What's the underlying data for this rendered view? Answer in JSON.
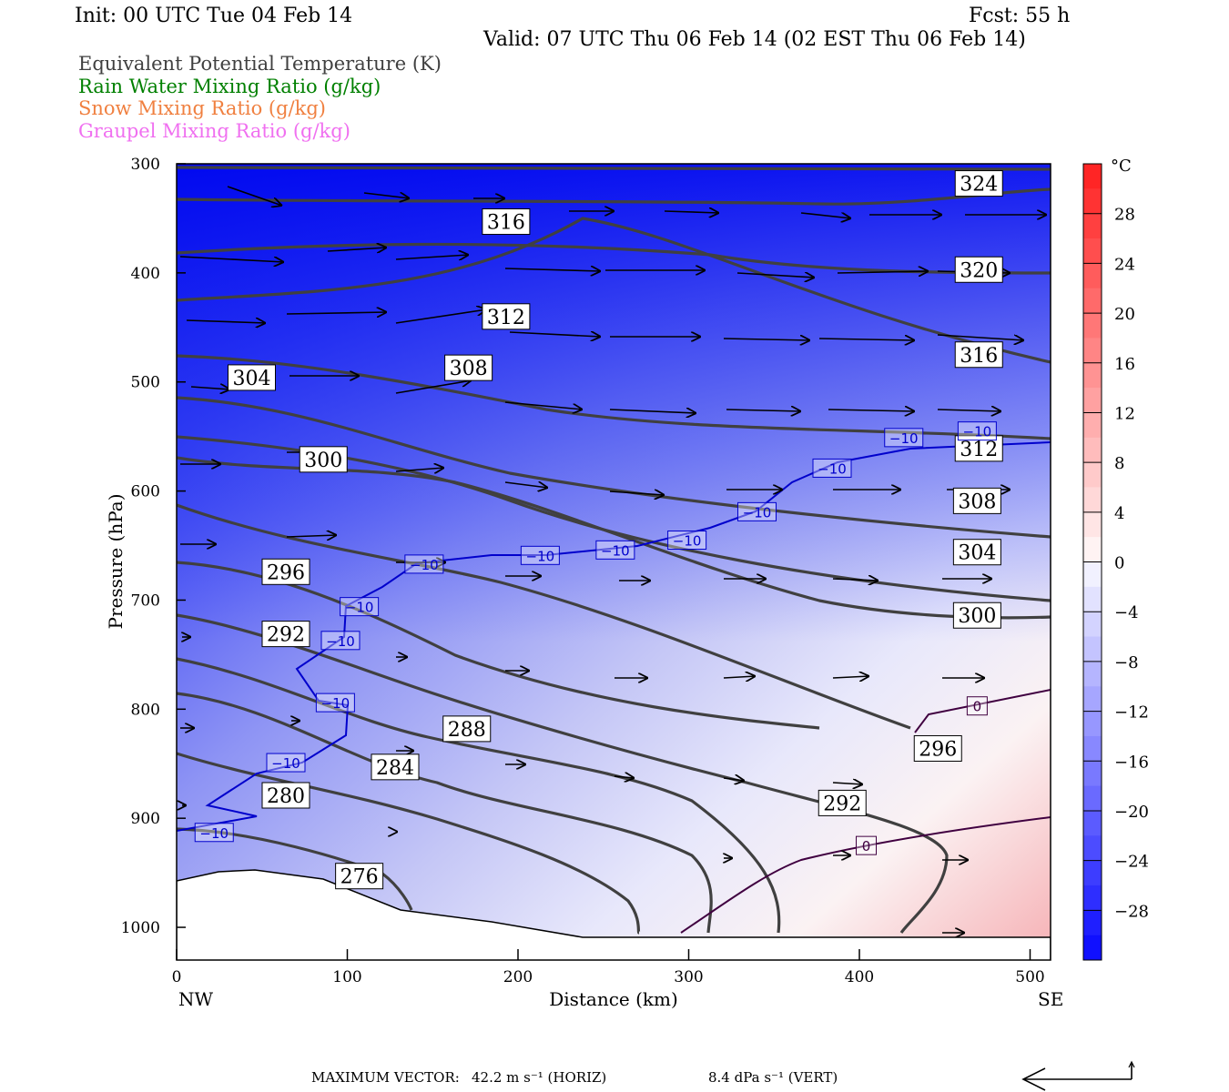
{
  "header": {
    "init": "Init: 00 UTC Tue 04 Feb 14",
    "fcst": "Fcst:   55 h",
    "valid": "Valid: 07 UTC Thu 06 Feb 14 (02 EST Thu 06 Feb 14)"
  },
  "legend": [
    {
      "label": "Equivalent Potential Temperature (K)",
      "color": "#404040"
    },
    {
      "label": "Rain Water Mixing Ratio (g/kg)",
      "color": "#008000"
    },
    {
      "label": "Snow Mixing Ratio (g/kg)",
      "color": "#f08040"
    },
    {
      "label": "Graupel Mixing Ratio (g/kg)",
      "color": "#f070f0"
    }
  ],
  "chart_data": {
    "type": "heatmap",
    "xlabel": "Distance (km)",
    "ylabel": "Pressure (hPa)",
    "xlim": [
      0,
      512
    ],
    "ylim": [
      1030,
      300
    ],
    "x_ticks": [
      0,
      100,
      200,
      300,
      400,
      500
    ],
    "y_ticks": [
      300,
      400,
      500,
      600,
      700,
      800,
      900,
      1000
    ],
    "endpoints": {
      "left": "NW",
      "right": "SE"
    },
    "colorbar": {
      "unit": "°C",
      "min": -32,
      "max": 32,
      "ticks": [
        28,
        24,
        20,
        16,
        12,
        8,
        4,
        0,
        -4,
        -8,
        -12,
        -16,
        -20,
        -24,
        -28
      ]
    },
    "theta_e_labels": [
      {
        "text": "324",
        "x": 470,
        "p": 318
      },
      {
        "text": "316",
        "x": 193,
        "p": 353
      },
      {
        "text": "320",
        "x": 470,
        "p": 397
      },
      {
        "text": "312",
        "x": 193,
        "p": 440
      },
      {
        "text": "316",
        "x": 470,
        "p": 475
      },
      {
        "text": "308",
        "x": 171,
        "p": 487
      },
      {
        "text": "304",
        "x": 44,
        "p": 496
      },
      {
        "text": "312",
        "x": 470,
        "p": 561
      },
      {
        "text": "300",
        "x": 86,
        "p": 571
      },
      {
        "text": "308",
        "x": 469,
        "p": 609
      },
      {
        "text": "304",
        "x": 469,
        "p": 656
      },
      {
        "text": "296",
        "x": 64,
        "p": 674
      },
      {
        "text": "300",
        "x": 469,
        "p": 714
      },
      {
        "text": "292",
        "x": 64,
        "p": 731
      },
      {
        "text": "288",
        "x": 170,
        "p": 818
      },
      {
        "text": "296",
        "x": 446,
        "p": 836
      },
      {
        "text": "284",
        "x": 128,
        "p": 853
      },
      {
        "text": "280",
        "x": 64,
        "p": 879
      },
      {
        "text": "292",
        "x": 390,
        "p": 886
      },
      {
        "text": "276",
        "x": 107,
        "p": 953
      }
    ],
    "temp_labels": [
      {
        "text": "−10",
        "x": 426,
        "p": 551,
        "color": "#0000cc"
      },
      {
        "text": "−10",
        "x": 469,
        "p": 545,
        "color": "#0000cc"
      },
      {
        "text": "−10",
        "x": 384,
        "p": 579,
        "color": "#0000cc"
      },
      {
        "text": "−10",
        "x": 340,
        "p": 619,
        "color": "#0000cc"
      },
      {
        "text": "−10",
        "x": 299,
        "p": 645,
        "color": "#0000cc"
      },
      {
        "text": "−10",
        "x": 257,
        "p": 654,
        "color": "#0000cc"
      },
      {
        "text": "−10",
        "x": 213,
        "p": 659,
        "color": "#0000cc"
      },
      {
        "text": "−10",
        "x": 145,
        "p": 667,
        "color": "#0000cc"
      },
      {
        "text": "−10",
        "x": 107,
        "p": 706,
        "color": "#0000cc"
      },
      {
        "text": "−10",
        "x": 96,
        "p": 737,
        "color": "#0000cc"
      },
      {
        "text": "−10",
        "x": 93,
        "p": 794,
        "color": "#0000cc"
      },
      {
        "text": "−10",
        "x": 64,
        "p": 849,
        "color": "#0000cc"
      },
      {
        "text": "−10",
        "x": 22,
        "p": 913,
        "color": "#0000cc"
      },
      {
        "text": "0",
        "x": 469,
        "p": 797,
        "color": "#400040"
      },
      {
        "text": "0",
        "x": 404,
        "p": 925,
        "color": "#400040"
      }
    ]
  },
  "footer": {
    "max_vector_label": "MAXIMUM VECTOR:",
    "horiz": "42.2 m s⁻¹ (HORIZ)",
    "vert": "8.4 dPa s⁻¹ (VERT)"
  }
}
